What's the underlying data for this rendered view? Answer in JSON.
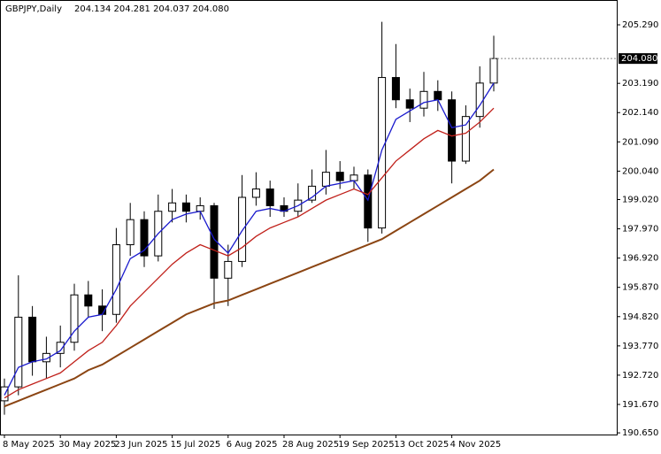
{
  "chart_data": {
    "type": "candlestick",
    "title": "GBPJPY,Daily",
    "subtitle": "204.134 204.281 204.037 204.080",
    "categories": [
      "8 May 2025",
      null,
      null,
      null,
      "30 May 2025",
      null,
      null,
      null,
      "23 Jun 2025",
      null,
      null,
      null,
      "15 Jul 2025",
      null,
      null,
      null,
      "6 Aug 2025",
      null,
      null,
      null,
      "28 Aug 2025",
      null,
      null,
      null,
      "19 Sep 2025",
      null,
      null,
      null,
      "13 Oct 2025",
      null,
      null,
      null,
      "4 Nov 2025",
      null,
      null,
      null
    ],
    "open": [
      191.8,
      192.3,
      194.8,
      193.2,
      193.5,
      193.9,
      195.6,
      195.2,
      194.9,
      197.4,
      198.3,
      197.0,
      198.6,
      198.9,
      198.6,
      198.8,
      196.2,
      196.8,
      199.1,
      199.4,
      198.8,
      198.6,
      199.0,
      199.5,
      200.0,
      199.7,
      199.9,
      198.0,
      203.4,
      202.6,
      202.3,
      202.9,
      202.6,
      200.4,
      202.0,
      203.2
    ],
    "high": [
      192.6,
      196.3,
      195.2,
      194.1,
      194.5,
      196.0,
      196.1,
      195.8,
      198.0,
      198.9,
      198.6,
      199.2,
      199.4,
      199.2,
      199.1,
      198.9,
      197.4,
      199.9,
      200.0,
      199.7,
      199.1,
      199.6,
      200.1,
      200.8,
      200.4,
      200.2,
      200.1,
      205.4,
      204.6,
      203.0,
      203.6,
      203.3,
      202.9,
      202.4,
      203.8,
      204.9
    ],
    "low": [
      191.3,
      192.0,
      192.7,
      192.6,
      193.0,
      193.6,
      194.8,
      194.3,
      194.6,
      197.0,
      196.6,
      196.8,
      198.2,
      198.2,
      198.3,
      195.1,
      195.2,
      196.6,
      198.8,
      198.4,
      198.4,
      198.4,
      198.9,
      199.2,
      199.4,
      199.4,
      197.5,
      197.8,
      202.3,
      201.8,
      202.0,
      202.2,
      199.6,
      200.3,
      201.6,
      202.9
    ],
    "close": [
      192.3,
      194.8,
      193.2,
      193.5,
      193.9,
      195.6,
      195.2,
      194.9,
      197.4,
      198.3,
      197.0,
      198.6,
      198.9,
      198.6,
      198.8,
      196.2,
      196.8,
      199.1,
      199.4,
      198.8,
      198.6,
      199.0,
      199.5,
      200.0,
      199.7,
      199.9,
      198.0,
      203.4,
      202.6,
      202.3,
      202.9,
      202.6,
      200.4,
      202.0,
      203.2,
      204.08
    ],
    "series": [
      {
        "color": "#1a1acd",
        "values": [
          192.0,
          193.0,
          193.2,
          193.3,
          193.6,
          194.3,
          194.8,
          194.9,
          195.8,
          196.9,
          197.2,
          197.8,
          198.3,
          198.5,
          198.6,
          197.6,
          197.1,
          197.9,
          198.6,
          198.7,
          198.6,
          198.8,
          199.1,
          199.5,
          199.6,
          199.7,
          199.0,
          200.8,
          201.9,
          202.2,
          202.5,
          202.6,
          201.6,
          201.7,
          202.4,
          203.2
        ]
      },
      {
        "color": "#c0201a",
        "values": [
          191.9,
          192.2,
          192.4,
          192.6,
          192.8,
          193.2,
          193.6,
          193.9,
          194.5,
          195.2,
          195.7,
          196.2,
          196.7,
          197.1,
          197.4,
          197.2,
          197.0,
          197.3,
          197.7,
          198.0,
          198.2,
          198.4,
          198.7,
          199.0,
          199.2,
          199.4,
          199.2,
          199.8,
          200.4,
          200.8,
          201.2,
          201.5,
          201.3,
          201.4,
          201.8,
          202.3
        ]
      },
      {
        "color": "#8b4513",
        "values": [
          191.6,
          191.8,
          192.0,
          192.2,
          192.4,
          192.6,
          192.9,
          193.1,
          193.4,
          193.7,
          194.0,
          194.3,
          194.6,
          194.9,
          195.1,
          195.3,
          195.4,
          195.6,
          195.8,
          196.0,
          196.2,
          196.4,
          196.6,
          196.8,
          197.0,
          197.2,
          197.4,
          197.6,
          197.9,
          198.2,
          198.5,
          198.8,
          199.1,
          199.4,
          199.7,
          200.1
        ]
      }
    ],
    "last_price": {
      "value": 204.08,
      "label": "204.080"
    },
    "ylim": [
      190.59,
      206.18
    ],
    "yticks": [
      {
        "value": 205.29,
        "label": "205.290"
      },
      {
        "value": 203.19,
        "label": "203.190"
      },
      {
        "value": 202.14,
        "label": "202.140"
      },
      {
        "value": 201.09,
        "label": "201.090"
      },
      {
        "value": 200.04,
        "label": "200.040"
      },
      {
        "value": 199.02,
        "label": "199.020"
      },
      {
        "value": 197.97,
        "label": "197.970"
      },
      {
        "value": 196.92,
        "label": "196.920"
      },
      {
        "value": 195.87,
        "label": "195.870"
      },
      {
        "value": 194.82,
        "label": "194.820"
      },
      {
        "value": 193.77,
        "label": "193.770"
      },
      {
        "value": 192.72,
        "label": "192.720"
      },
      {
        "value": 191.67,
        "label": "191.670"
      },
      {
        "value": 190.65,
        "label": "190.650"
      }
    ]
  }
}
